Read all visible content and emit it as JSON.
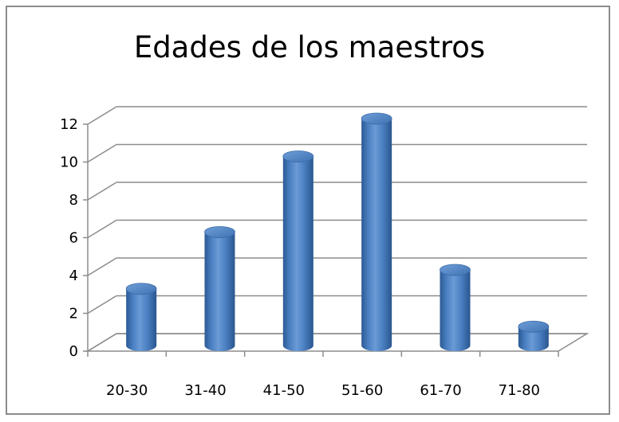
{
  "chart_data": {
    "type": "bar",
    "title": "Edades de los maestros",
    "categories": [
      "20-30",
      "31-40",
      "41-50",
      "51-60",
      "61-70",
      "71-80"
    ],
    "values": [
      3,
      6,
      10,
      12,
      4,
      1
    ],
    "xlabel": "",
    "ylabel": "",
    "ylim": [
      0,
      12
    ],
    "yticks": [
      "0",
      "2",
      "4",
      "6",
      "8",
      "10",
      "12"
    ],
    "grid": true,
    "legend": "none",
    "style": "3d-cylinder",
    "colors": {
      "bar": "#4a7fc1",
      "bar_top": "#5a8fd0",
      "grid": "#8c8c8c",
      "frame": "#8c8c8c"
    }
  }
}
